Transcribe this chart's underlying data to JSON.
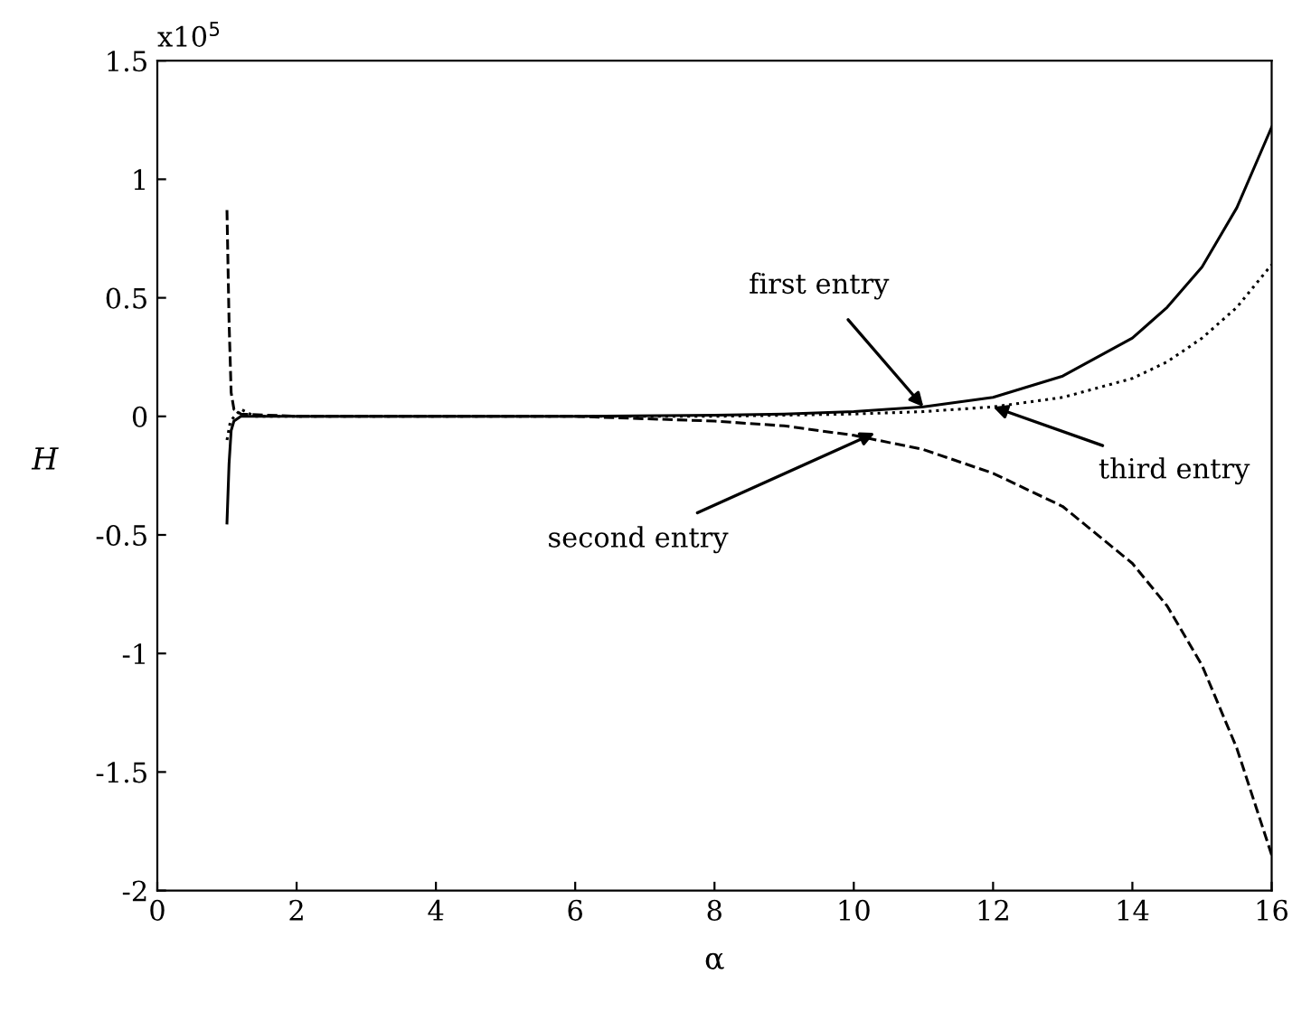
{
  "chart_data": {
    "type": "line",
    "xlabel": "α",
    "ylabel": "H",
    "xlim": [
      0,
      16
    ],
    "xticks": [
      0,
      2,
      4,
      6,
      8,
      10,
      12,
      14,
      16
    ],
    "ylim": [
      -2,
      1.5
    ],
    "yticks": [
      -2,
      -1.5,
      -1,
      -0.5,
      0,
      0.5,
      1,
      1.5
    ],
    "grid": false,
    "legend": false,
    "series": [
      {
        "color": "#000000",
        "line_style": "solid",
        "x": [
          1.0,
          1.03,
          1.06,
          1.1,
          1.2,
          2,
          4,
          6,
          8,
          9,
          10,
          11,
          12,
          13,
          14,
          14.5,
          15,
          15.5,
          16
        ],
        "values": [
          -0.45,
          -0.2,
          -0.06,
          -0.02,
          0,
          0,
          0,
          0,
          0.005,
          0.01,
          0.02,
          0.04,
          0.08,
          0.17,
          0.33,
          0.46,
          0.63,
          0.88,
          1.22
        ]
      },
      {
        "color": "#000000",
        "line_style": "dashed",
        "x": [
          1.0,
          1.03,
          1.06,
          1.1,
          1.2,
          2,
          4,
          6,
          8,
          9,
          10,
          11,
          12,
          13,
          14,
          14.5,
          15,
          15.5,
          16
        ],
        "values": [
          0.87,
          0.4,
          0.1,
          0.03,
          0.01,
          0,
          0,
          0,
          -0.02,
          -0.04,
          -0.08,
          -0.14,
          -0.24,
          -0.38,
          -0.62,
          -0.8,
          -1.05,
          -1.4,
          -1.85
        ]
      },
      {
        "color": "#000000",
        "line_style": "dotted",
        "x": [
          1.0,
          1.05,
          1.2,
          1.4,
          2,
          4,
          6,
          8,
          10,
          11,
          12,
          13,
          14,
          14.5,
          15,
          15.5,
          16
        ],
        "values": [
          -0.1,
          -0.02,
          0.03,
          0,
          0,
          0,
          0,
          0,
          0.01,
          0.02,
          0.04,
          0.08,
          0.16,
          0.23,
          0.33,
          0.46,
          0.64
        ]
      }
    ],
    "annotations": [
      "x10$^{5}$",
      {
        "text": "first entry",
        "x": 11,
        "y": 0.04
      },
      {
        "text": "third entry",
        "x": 12,
        "y": 0.04
      },
      {
        "text": "second entry",
        "x": 10.3,
        "y": -0.07
      }
    ]
  }
}
